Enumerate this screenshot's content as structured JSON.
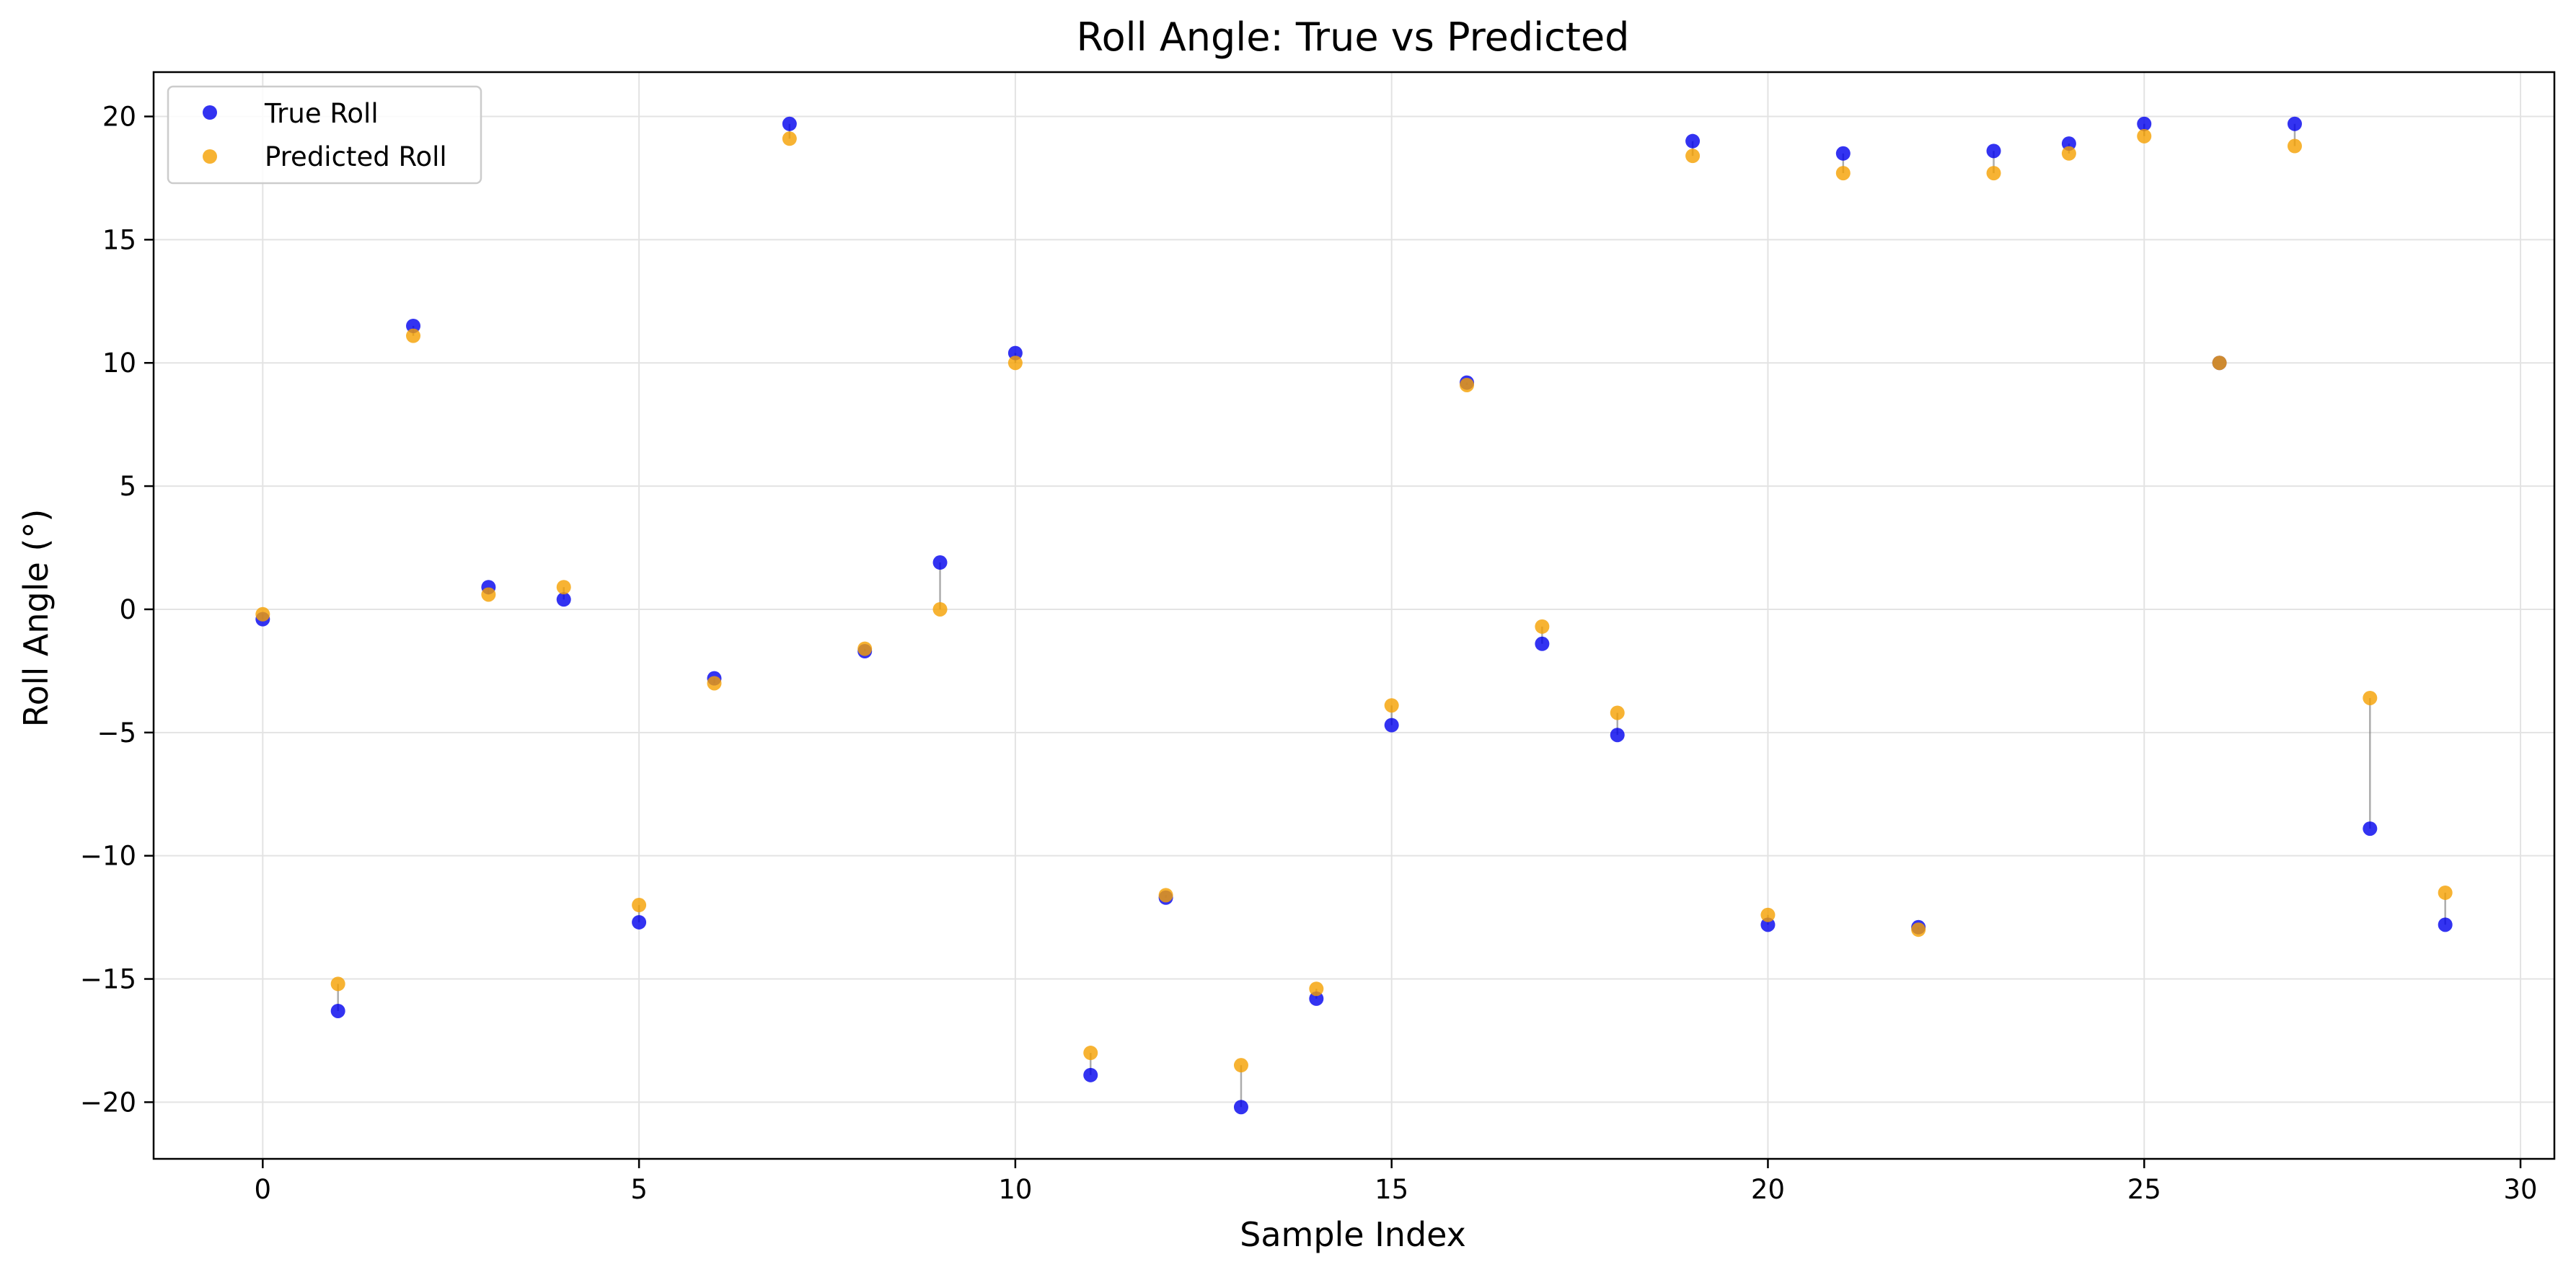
{
  "chart_data": {
    "type": "scatter",
    "title": "Roll Angle: True vs Predicted",
    "xlabel": "Sample Index",
    "ylabel": "Roll Angle (°)",
    "xlim": [
      -1.45,
      30.45
    ],
    "ylim": [
      -22.3,
      21.8
    ],
    "xticks": [
      0,
      5,
      10,
      15,
      20,
      25,
      30
    ],
    "yticks": [
      -20,
      -15,
      -10,
      -5,
      0,
      5,
      10,
      15,
      20
    ],
    "grid": true,
    "legend_position": "top-left",
    "connector_color": "#808080",
    "x": [
      0,
      1,
      2,
      3,
      4,
      5,
      6,
      7,
      8,
      9,
      10,
      11,
      12,
      13,
      14,
      15,
      16,
      17,
      18,
      19,
      20,
      21,
      22,
      23,
      24,
      25,
      26,
      27,
      28,
      29
    ],
    "series": [
      {
        "name": "True Roll",
        "color": "#0000ee",
        "values": [
          -0.4,
          -16.3,
          11.5,
          0.9,
          0.4,
          -12.7,
          -2.8,
          19.7,
          -1.7,
          1.9,
          10.4,
          -18.9,
          -11.7,
          -20.2,
          -15.8,
          -4.7,
          9.2,
          -1.4,
          -5.1,
          19.0,
          -12.8,
          18.5,
          -12.9,
          18.6,
          18.9,
          19.7,
          10.0,
          19.7,
          -8.9,
          -12.8
        ]
      },
      {
        "name": "Predicted Roll",
        "color": "#f5a000",
        "values": [
          -0.2,
          -15.2,
          11.1,
          0.6,
          0.9,
          -12.0,
          -3.0,
          19.1,
          -1.6,
          0.0,
          10.0,
          -18.0,
          -11.6,
          -18.5,
          -15.4,
          -3.9,
          9.1,
          -0.7,
          -4.2,
          18.4,
          -12.4,
          17.7,
          -13.0,
          17.7,
          18.5,
          19.2,
          10.0,
          18.8,
          -3.6,
          -11.5
        ]
      }
    ]
  }
}
